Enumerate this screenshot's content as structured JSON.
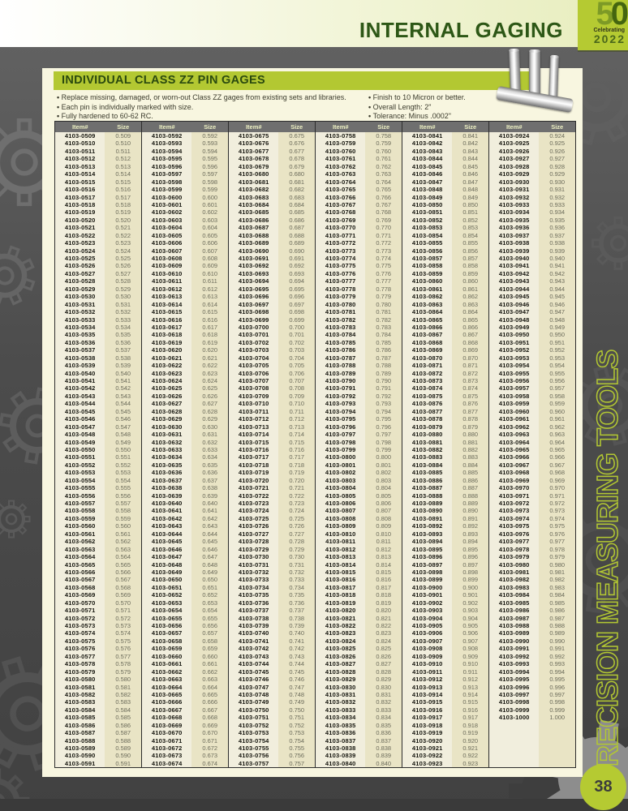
{
  "header": {
    "title": "INTERNAL GAGING",
    "logo": {
      "digit1": "5",
      "digit2": "0",
      "line1": "Celebrating",
      "line2": "2022"
    }
  },
  "section": {
    "title": "INDIVIDUAL CLASS ZZ PIN GAGES",
    "bullets_left": [
      "Replace missing, damaged, or worn-out Class ZZ gages from existing sets and libraries.",
      "Each pin is individually marked with size.",
      "Fully hardened to 60-62 RC."
    ],
    "bullets_right": [
      "Finish to 10 Micron or better.",
      "Overall Length: 2\"",
      "Tolerance: Minus .0002\""
    ]
  },
  "table": {
    "headers": [
      "Item#",
      "Size"
    ],
    "item_prefix": "4103-",
    "rows_per_column": 83,
    "group_rows": 4,
    "size_rule": "size equals item suffix divided by 1000, shown to 3 decimals",
    "columns": [
      {
        "start": 509,
        "end": 591
      },
      {
        "start": 592,
        "end": 674
      },
      {
        "start": 675,
        "end": 757
      },
      {
        "start": 758,
        "end": 840
      },
      {
        "start": 841,
        "end": 923
      },
      {
        "start": 924,
        "end": 1000
      }
    ]
  },
  "sidebar_text": "PRECISION MEASURING TOOLS",
  "page_number": "38",
  "colors": {
    "accent_lime": "#b5ca32",
    "title_green": "#2d5716",
    "table_header_gray": "#6f6f6f",
    "panel_cream": "#f8f6e0",
    "item_cell": "#f1eedd",
    "size_cell": "#e9e4c5"
  }
}
